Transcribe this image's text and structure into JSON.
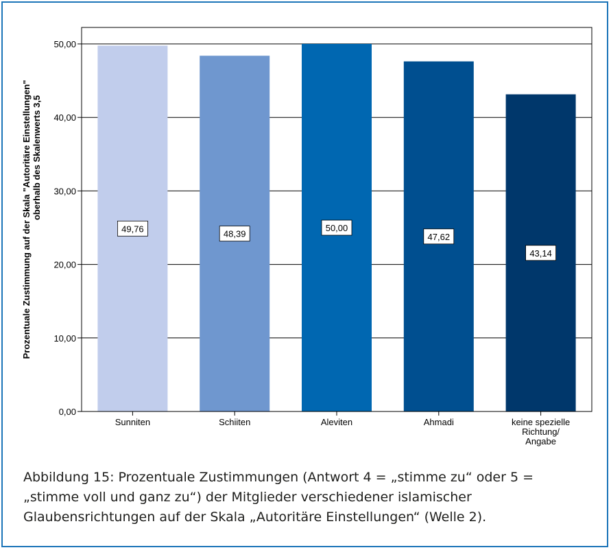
{
  "chart_data": {
    "type": "bar",
    "categories": [
      [
        "Sunniten"
      ],
      [
        "Schiiten"
      ],
      [
        "Aleviten"
      ],
      [
        "Ahmadi"
      ],
      [
        "keine spezielle",
        "Richtung/",
        "Angabe"
      ]
    ],
    "values": [
      49.76,
      48.39,
      50.0,
      47.62,
      43.14
    ],
    "data_labels": [
      "49,76",
      "48,39",
      "50,00",
      "47,62",
      "43,14"
    ],
    "bar_colors": [
      "#c1cdec",
      "#6f97cf",
      "#0067b1",
      "#004f90",
      "#00376b"
    ],
    "ylabel": [
      "Prozentuale Zustimmung auf der Skala \"Autoritäre Einstellungen\"",
      "oberhalb des Skalenwerts 3,5"
    ],
    "xlabel": "",
    "ylim": [
      0,
      50
    ],
    "yticks": [
      0,
      10,
      20,
      30,
      40,
      50
    ],
    "ytick_labels": [
      "0,00",
      "10,00",
      "20,00",
      "30,00",
      "40,00",
      "50,00"
    ],
    "grid": true,
    "legend": false
  },
  "caption": "Abbildung 15: Prozentuale Zustimmungen (Antwort 4 = „stimme zu“ oder 5 = „stimme voll und ganz zu“) der Mitglieder verschiedener islamischer Glaubensrichtungen auf der Skala „Autoritäre Einstellungen“ (Welle 2).",
  "colors": {
    "frame": "#1b74b8"
  }
}
